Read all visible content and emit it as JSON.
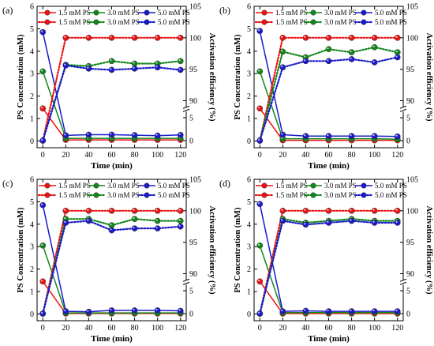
{
  "chart_data": [
    {
      "type": "line",
      "panel_label": "(a)",
      "xlabel": "Time (min)",
      "ylabel_left": "PS Concentration (mM)",
      "ylabel_right": "Activation efficiency (%)",
      "x": [
        0,
        20,
        40,
        60,
        80,
        100,
        120
      ],
      "xlim": [
        -5,
        125
      ],
      "x_ticks": [
        0,
        20,
        40,
        60,
        80,
        100,
        120
      ],
      "ylim_left": [
        -0.3,
        6
      ],
      "y_ticks_left": [
        0,
        1,
        2,
        3,
        4,
        5,
        6
      ],
      "right_axis_ranges": [
        [
          0,
          5
        ],
        [
          90,
          105
        ]
      ],
      "right_ticks_lower": [
        0,
        5
      ],
      "right_ticks_upper": [
        90,
        95,
        100,
        105
      ],
      "legend": [
        {
          "label": "1.5 mM PS",
          "style": "solid",
          "color": "#ee1111"
        },
        {
          "label": "3.0 mM PS",
          "style": "solid",
          "color": "#11881a"
        },
        {
          "label": "5.0 mM PS",
          "style": "solid",
          "color": "#1a1acc"
        },
        {
          "label": "1.5 mM PS",
          "style": "dotted",
          "color": "#ee1111"
        },
        {
          "label": "3.0 mM PS",
          "style": "dotted",
          "color": "#11881a"
        },
        {
          "label": "5.0 mM PS",
          "style": "dotted",
          "color": "#1a1acc"
        }
      ],
      "series": [
        {
          "name": "1.5 mM PS",
          "axis": "left",
          "style": "solid",
          "color": "#ee1111",
          "values": [
            1.45,
            0.05,
            0.05,
            0.05,
            0.05,
            0.05,
            0.05
          ]
        },
        {
          "name": "3.0 mM PS",
          "axis": "left",
          "style": "solid",
          "color": "#11881a",
          "values": [
            3.1,
            0.12,
            0.12,
            0.12,
            0.12,
            0.12,
            0.12
          ]
        },
        {
          "name": "5.0 mM PS",
          "axis": "left",
          "style": "solid",
          "color": "#1a1acc",
          "values": [
            4.85,
            0.25,
            0.28,
            0.28,
            0.26,
            0.24,
            0.27
          ]
        },
        {
          "name": "1.5 mM PS",
          "axis": "right",
          "style": "dotted",
          "color": "#ee1111",
          "values": [
            0,
            100,
            100,
            100,
            100,
            100,
            100
          ]
        },
        {
          "name": "3.0 mM PS",
          "axis": "right",
          "style": "dotted",
          "color": "#11881a",
          "values": [
            0,
            95.7,
            95.5,
            96.3,
            95.9,
            95.9,
            96.3
          ]
        },
        {
          "name": "5.0 mM PS",
          "axis": "right",
          "style": "dotted",
          "color": "#1a1acc",
          "values": [
            0,
            95.6,
            95.1,
            94.9,
            95.1,
            95.3,
            94.9
          ]
        }
      ]
    },
    {
      "type": "line",
      "panel_label": "(b)",
      "xlabel": "Time (min)",
      "ylabel_left": "PS Concentration (mM)",
      "ylabel_right": "Activation efficiency (%)",
      "x": [
        0,
        20,
        40,
        60,
        80,
        100,
        120
      ],
      "xlim": [
        -5,
        125
      ],
      "x_ticks": [
        0,
        20,
        40,
        60,
        80,
        100,
        120
      ],
      "ylim_left": [
        -0.3,
        6
      ],
      "y_ticks_left": [
        0,
        1,
        2,
        3,
        4,
        5,
        6
      ],
      "right_axis_ranges": [
        [
          0,
          5
        ],
        [
          90,
          105
        ]
      ],
      "right_ticks_lower": [
        0,
        5
      ],
      "right_ticks_upper": [
        90,
        95,
        100,
        105
      ],
      "legend": [
        {
          "label": "1.5 mM PS",
          "style": "solid",
          "color": "#ee1111"
        },
        {
          "label": "3.0 mM PS",
          "style": "solid",
          "color": "#11881a"
        },
        {
          "label": "5.0 mM PS",
          "style": "solid",
          "color": "#1a1acc"
        },
        {
          "label": "1.5 mM PS",
          "style": "dotted",
          "color": "#ee1111"
        },
        {
          "label": "3.0 mM PS",
          "style": "dotted",
          "color": "#11881a"
        },
        {
          "label": "5.0 mM PS",
          "style": "dotted",
          "color": "#1a1acc"
        }
      ],
      "series": [
        {
          "name": "1.5 mM PS",
          "axis": "left",
          "style": "solid",
          "color": "#ee1111",
          "values": [
            1.45,
            0.03,
            0.03,
            0.03,
            0.03,
            0.03,
            0.03
          ]
        },
        {
          "name": "3.0 mM PS",
          "axis": "left",
          "style": "solid",
          "color": "#11881a",
          "values": [
            3.1,
            0.1,
            0.1,
            0.1,
            0.1,
            0.1,
            0.08
          ]
        },
        {
          "name": "5.0 mM PS",
          "axis": "left",
          "style": "solid",
          "color": "#1a1acc",
          "values": [
            4.9,
            0.28,
            0.22,
            0.22,
            0.22,
            0.22,
            0.2
          ]
        },
        {
          "name": "1.5 mM PS",
          "axis": "right",
          "style": "dotted",
          "color": "#ee1111",
          "values": [
            0,
            100,
            100,
            100,
            100,
            100,
            100
          ]
        },
        {
          "name": "3.0 mM PS",
          "axis": "right",
          "style": "dotted",
          "color": "#11881a",
          "values": [
            0,
            97.8,
            96.9,
            98.2,
            97.7,
            98.5,
            97.7
          ]
        },
        {
          "name": "5.0 mM PS",
          "axis": "right",
          "style": "dotted",
          "color": "#1a1acc",
          "values": [
            0,
            95.3,
            96.3,
            96.3,
            96.6,
            96.1,
            96.9
          ]
        }
      ]
    },
    {
      "type": "line",
      "panel_label": "(c)",
      "xlabel": "Time (min)",
      "ylabel_left": "PS Concentration (mM)",
      "ylabel_right": "Activation efficiency (%)",
      "x": [
        0,
        20,
        40,
        60,
        80,
        100,
        120
      ],
      "xlim": [
        -5,
        125
      ],
      "x_ticks": [
        0,
        20,
        40,
        60,
        80,
        100,
        120
      ],
      "ylim_left": [
        -0.3,
        6
      ],
      "y_ticks_left": [
        0,
        1,
        2,
        3,
        4,
        5,
        6
      ],
      "right_axis_ranges": [
        [
          0,
          5
        ],
        [
          90,
          105
        ]
      ],
      "right_ticks_lower": [
        0,
        5
      ],
      "right_ticks_upper": [
        90,
        95,
        100,
        105
      ],
      "legend": [
        {
          "label": "1.5 mM PS",
          "style": "solid",
          "color": "#ee1111"
        },
        {
          "label": "3.0 mM PS",
          "style": "solid",
          "color": "#11881a"
        },
        {
          "label": "5.0 mM PS",
          "style": "solid",
          "color": "#1a1acc"
        },
        {
          "label": "1.5 mM PS",
          "style": "dotted",
          "color": "#ee1111"
        },
        {
          "label": "3.0 mM PS",
          "style": "dotted",
          "color": "#11881a"
        },
        {
          "label": "5.0 mM PS",
          "style": "dotted",
          "color": "#1a1acc"
        }
      ],
      "series": [
        {
          "name": "1.5 mM PS",
          "axis": "left",
          "style": "solid",
          "color": "#ee1111",
          "values": [
            1.45,
            0.02,
            0.02,
            0.02,
            0.02,
            0.02,
            0.02
          ]
        },
        {
          "name": "3.0 mM PS",
          "axis": "left",
          "style": "solid",
          "color": "#11881a",
          "values": [
            3.05,
            0.05,
            0.05,
            0.05,
            0.05,
            0.05,
            0.05
          ]
        },
        {
          "name": "5.0 mM PS",
          "axis": "left",
          "style": "solid",
          "color": "#1a1acc",
          "values": [
            4.85,
            0.12,
            0.1,
            0.16,
            0.16,
            0.16,
            0.14
          ]
        },
        {
          "name": "1.5 mM PS",
          "axis": "right",
          "style": "dotted",
          "color": "#ee1111",
          "values": [
            0,
            100,
            100,
            100,
            100,
            100,
            100
          ]
        },
        {
          "name": "3.0 mM PS",
          "axis": "right",
          "style": "dotted",
          "color": "#11881a",
          "values": [
            0,
            98.7,
            98.7,
            97.7,
            98.7,
            98.4,
            98.4
          ]
        },
        {
          "name": "5.0 mM PS",
          "axis": "right",
          "style": "dotted",
          "color": "#1a1acc",
          "values": [
            0,
            98.1,
            98.4,
            96.9,
            97.2,
            97.2,
            97.5
          ]
        }
      ]
    },
    {
      "type": "line",
      "panel_label": "(d)",
      "xlabel": "Time (min)",
      "ylabel_left": "PS Concentration (mM)",
      "ylabel_right": "Activation efficiency (%)",
      "x": [
        0,
        20,
        40,
        60,
        80,
        100,
        120
      ],
      "xlim": [
        -5,
        125
      ],
      "x_ticks": [
        0,
        20,
        40,
        60,
        80,
        100,
        120
      ],
      "ylim_left": [
        -0.3,
        6
      ],
      "y_ticks_left": [
        0,
        1,
        2,
        3,
        4,
        5,
        6
      ],
      "right_axis_ranges": [
        [
          0,
          5
        ],
        [
          90,
          105
        ]
      ],
      "right_ticks_lower": [
        0,
        5
      ],
      "right_ticks_upper": [
        90,
        95,
        100,
        105
      ],
      "legend": [
        {
          "label": "1.5 mM PS",
          "style": "solid",
          "color": "#ee1111"
        },
        {
          "label": "3.0 mM PS",
          "style": "solid",
          "color": "#11881a"
        },
        {
          "label": "5.0 mM PS",
          "style": "solid",
          "color": "#1a1acc"
        },
        {
          "label": "1.5 mM PS",
          "style": "dotted",
          "color": "#ee1111"
        },
        {
          "label": "3.0 mM PS",
          "style": "dotted",
          "color": "#11881a"
        },
        {
          "label": "5.0 mM PS",
          "style": "dotted",
          "color": "#1a1acc"
        }
      ],
      "series": [
        {
          "name": "1.5 mM PS",
          "axis": "left",
          "style": "solid",
          "color": "#ee1111",
          "values": [
            1.45,
            0.02,
            0.02,
            0.02,
            0.02,
            0.02,
            0.02
          ]
        },
        {
          "name": "3.0 mM PS",
          "axis": "left",
          "style": "solid",
          "color": "#11881a",
          "values": [
            3.05,
            0.06,
            0.06,
            0.06,
            0.06,
            0.06,
            0.06
          ]
        },
        {
          "name": "5.0 mM PS",
          "axis": "left",
          "style": "solid",
          "color": "#1a1acc",
          "values": [
            4.9,
            0.12,
            0.14,
            0.12,
            0.12,
            0.12,
            0.12
          ]
        },
        {
          "name": "1.5 mM PS",
          "axis": "right",
          "style": "dotted",
          "color": "#ee1111",
          "values": [
            0,
            100,
            100,
            100,
            100,
            100,
            100
          ]
        },
        {
          "name": "3.0 mM PS",
          "axis": "right",
          "style": "dotted",
          "color": "#11881a",
          "values": [
            0,
            98.7,
            98.1,
            98.4,
            98.7,
            98.4,
            98.4
          ]
        },
        {
          "name": "5.0 mM PS",
          "axis": "right",
          "style": "dotted",
          "color": "#1a1acc",
          "values": [
            0,
            98.4,
            97.8,
            98.1,
            98.4,
            98.1,
            98.1
          ]
        }
      ]
    }
  ]
}
